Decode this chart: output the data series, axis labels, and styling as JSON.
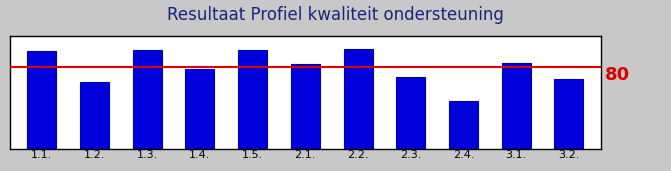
{
  "title": "Resultaat Profiel kwaliteit ondersteuning",
  "title_color": "#1a237e",
  "categories": [
    "1.1.",
    "1.2.",
    "1.3.",
    "1.4.",
    "1.5.",
    "2.1.",
    "2.2.",
    "2.3.",
    "2.4.",
    "3.1.",
    "3.2."
  ],
  "values": [
    95,
    65,
    96,
    78,
    96,
    83,
    97,
    70,
    47,
    84,
    68
  ],
  "bar_color": "#0000dd",
  "bar_edge_color": "#0000aa",
  "reference_line": 80,
  "reference_line_color": "#dd0000",
  "reference_label_color": "#dd0000",
  "reference_label_fontsize": 13,
  "title_fontsize": 12,
  "tick_fontsize": 8,
  "ylim": [
    0,
    110
  ],
  "background_color": "#ffffff",
  "outer_bg_color": "#c8c8c8",
  "title_bg_color": "#d0d0d0",
  "bar_width": 0.55,
  "border_color": "#000000"
}
